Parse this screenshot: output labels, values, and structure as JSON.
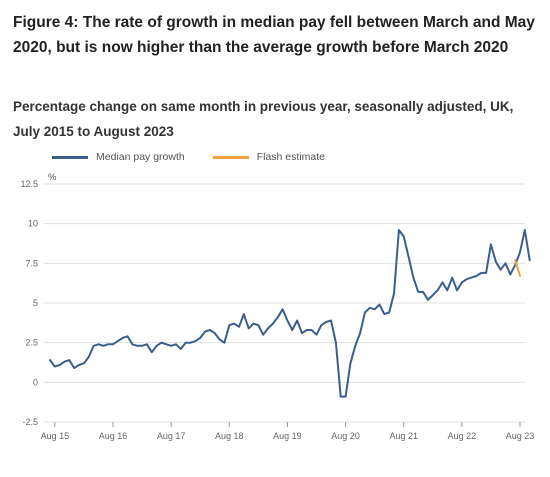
{
  "title": "Figure 4: The rate of growth in median pay fell between March and May 2020, but is now higher than the average growth before March 2020",
  "subtitle": "Percentage change on same month in previous year, seasonally adjusted, UK, July 2015 to August 2023",
  "chart_data": {
    "type": "line",
    "ylabel": "%",
    "ylim": [
      -2.5,
      12.5
    ],
    "yticks": [
      "12.5",
      "10",
      "7.5",
      "5",
      "2.5",
      "0",
      "-2.5"
    ],
    "xticks": [
      "Aug 15",
      "Aug 16",
      "Aug 17",
      "Aug 18",
      "Aug 19",
      "Aug 20",
      "Aug 21",
      "Aug 22",
      "Aug 23"
    ],
    "grid": true,
    "legend_position": "top-left",
    "colors": {
      "median": "#3b5f8c",
      "flash": "#f0a23f",
      "grid": "#e0e0e0"
    },
    "series": [
      {
        "name": "Median pay growth",
        "x_start": "Jul 2015",
        "values": [
          1.4,
          1.0,
          1.1,
          1.3,
          1.4,
          0.9,
          1.1,
          1.2,
          1.6,
          2.3,
          2.4,
          2.3,
          2.4,
          2.4,
          2.6,
          2.8,
          2.9,
          2.4,
          2.3,
          2.3,
          2.4,
          1.9,
          2.3,
          2.5,
          2.4,
          2.3,
          2.4,
          2.1,
          2.5,
          2.5,
          2.6,
          2.8,
          3.2,
          3.3,
          3.1,
          2.7,
          2.5,
          3.6,
          3.7,
          3.5,
          4.3,
          3.4,
          3.7,
          3.6,
          3.0,
          3.4,
          3.7,
          4.1,
          4.6,
          3.9,
          3.3,
          3.9,
          3.1,
          3.3,
          3.3,
          3.0,
          3.6,
          3.8,
          3.9,
          2.5,
          -0.9,
          -0.9,
          1.2,
          2.3,
          3.1,
          4.4,
          4.7,
          4.6,
          4.9,
          4.3,
          4.4,
          5.6,
          9.6,
          9.2,
          7.9,
          6.6,
          5.7,
          5.7,
          5.2,
          5.5,
          5.8,
          6.3,
          5.8,
          6.6,
          5.8,
          6.3,
          6.5,
          6.6,
          6.7,
          6.9,
          6.9,
          8.7,
          7.6,
          7.1,
          7.5,
          6.8,
          7.4,
          8.2,
          9.6,
          7.7
        ]
      },
      {
        "name": "Flash estimate",
        "x_start": "Jul 2023",
        "values": [
          7.7,
          6.7
        ]
      }
    ]
  }
}
